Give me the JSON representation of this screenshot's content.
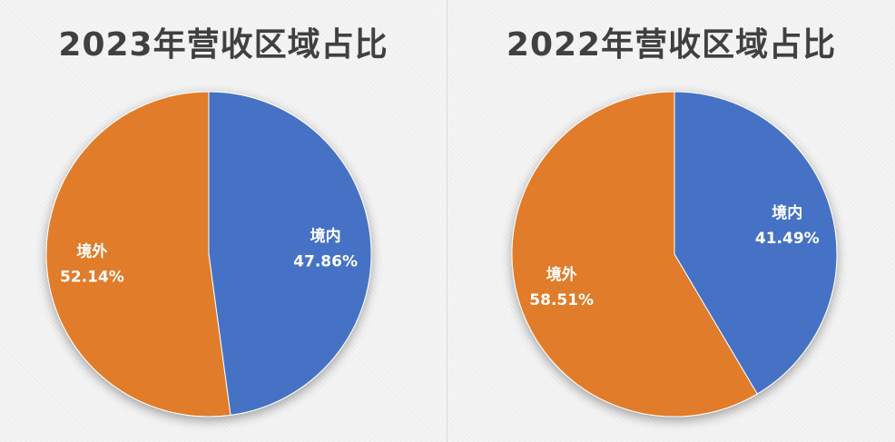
{
  "chart_data": [
    {
      "type": "pie",
      "title": "2023年营收区域占比",
      "slices": [
        {
          "label": "境内",
          "value": 47.86,
          "value_label": "47.86%",
          "color": "#4472c4"
        },
        {
          "label": "境外",
          "value": 52.14,
          "value_label": "52.14%",
          "color": "#e07b2a"
        }
      ]
    },
    {
      "type": "pie",
      "title": "2022年营收区域占比",
      "slices": [
        {
          "label": "境内",
          "value": 41.49,
          "value_label": "41.49%",
          "color": "#4472c4"
        },
        {
          "label": "境外",
          "value": 58.51,
          "value_label": "58.51%",
          "color": "#e07b2a"
        }
      ]
    }
  ]
}
